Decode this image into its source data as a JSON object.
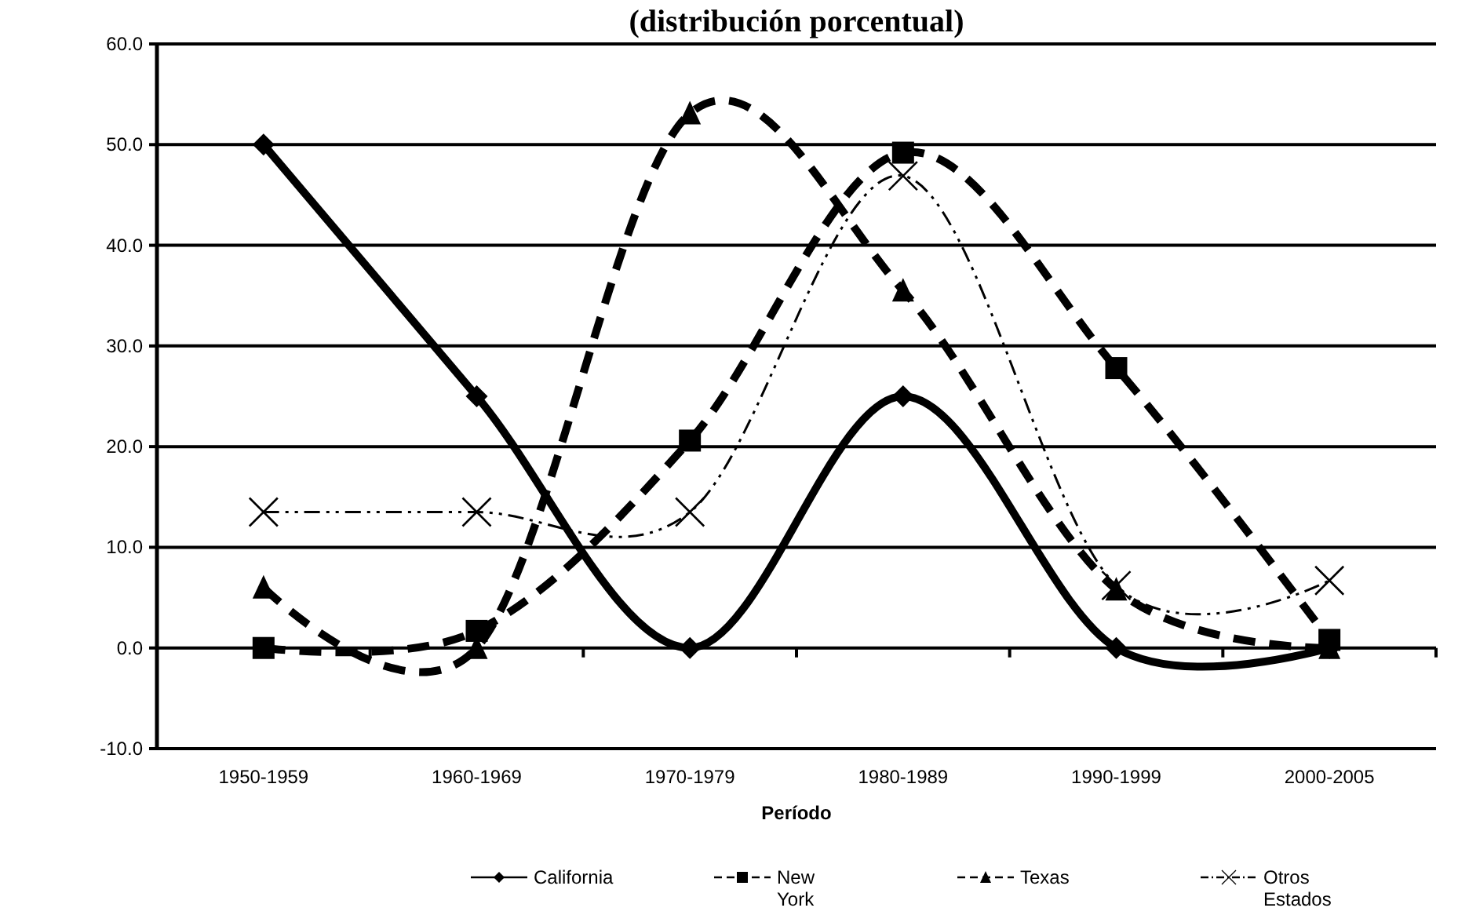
{
  "chart_data": {
    "type": "line",
    "title": "(distribución porcentual)",
    "xlabel": "Período",
    "categories": [
      "1950-1959",
      "1960-1969",
      "1970-1979",
      "1980-1989",
      "1990-1999",
      "2000-2005"
    ],
    "series": [
      {
        "name": "California",
        "color": "#000000",
        "marker": "diamond",
        "line_style": "solid",
        "values": [
          50,
          25,
          0,
          25,
          0,
          0
        ]
      },
      {
        "name": "New York",
        "color": "#000000",
        "marker": "square",
        "line_style": "dashed",
        "values": [
          0,
          1.7,
          20.6,
          49.2,
          27.8,
          0.8
        ]
      },
      {
        "name": "Texas",
        "color": "#000000",
        "marker": "triangle",
        "line_style": "dashed",
        "values": [
          6,
          0,
          53.1,
          35.5,
          5.8,
          0
        ]
      },
      {
        "name": "Otros Estados",
        "color": "#000000",
        "marker": "cross",
        "line_style": "dotted",
        "values": [
          13.5,
          13.5,
          13.5,
          46.9,
          6.2,
          6.7
        ]
      }
    ],
    "ylim": [
      -10,
      60
    ],
    "yticks": [
      {
        "value": -10,
        "label": "-10.0"
      },
      {
        "value": 0,
        "label": "0.0"
      },
      {
        "value": 10,
        "label": "10.0"
      },
      {
        "value": 20,
        "label": "20.0"
      },
      {
        "value": 30,
        "label": "30.0"
      },
      {
        "value": 40,
        "label": "40.0"
      },
      {
        "value": 50,
        "label": "50.0"
      },
      {
        "value": 60,
        "label": "60.0"
      }
    ],
    "grid": "y",
    "legend": "bottom"
  }
}
